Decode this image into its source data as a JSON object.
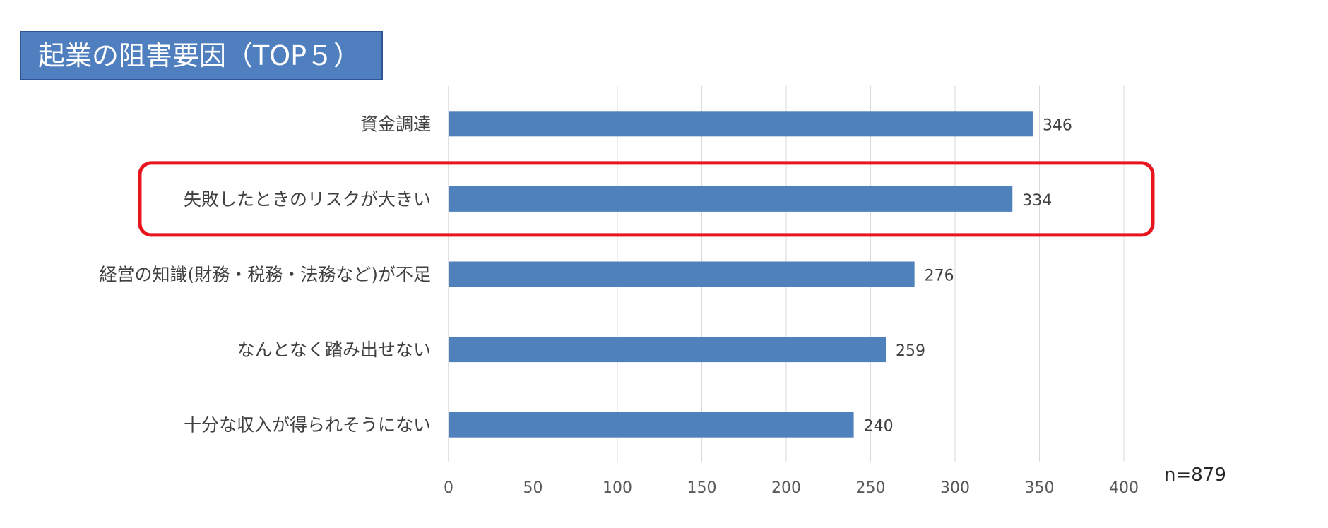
{
  "chart_data": {
    "type": "bar",
    "orientation": "horizontal",
    "title": "起業の阻害要因（TOP５）",
    "categories": [
      "資金調達",
      "失敗したときのリスクが大きい",
      "経営の知識(財務・税務・法務など)が不足",
      "なんとなく踏み出せない",
      "十分な収入が得られそうにない"
    ],
    "values": [
      346,
      334,
      276,
      259,
      240
    ],
    "data_labels": [
      "346",
      "334",
      "276",
      "259",
      "240"
    ],
    "xlim": [
      0,
      400
    ],
    "xticks": [
      0,
      50,
      100,
      150,
      200,
      250,
      300,
      350,
      400
    ],
    "xtick_labels": [
      "0",
      "50",
      "100",
      "150",
      "200",
      "250",
      "300",
      "350",
      "400"
    ],
    "grid": "vertical",
    "highlighted_category_index": 1,
    "annotation": "n=879",
    "colors": {
      "bar": "#4f81bd",
      "highlight": "#e8141e",
      "title_bg": "#4f7fbe",
      "grid": "#d9d9d9"
    }
  }
}
